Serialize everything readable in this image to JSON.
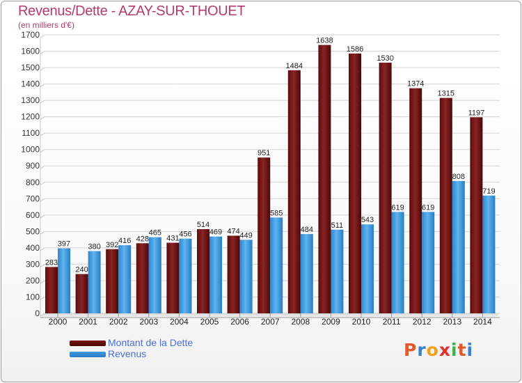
{
  "title": "Revenus/Dette - AZAY-SUR-THOUET",
  "subtitle": "(en milliers d'€)",
  "colors": {
    "dette": "#7a1414",
    "revenus": "#3e9be0",
    "title": "#b23a6e",
    "legend_text": "#4a6fe0"
  },
  "legend": {
    "dette_label": "Montant de la Dette",
    "revenus_label": "Revenus"
  },
  "brand": {
    "letters": [
      "P",
      "r",
      "o",
      "x",
      "i",
      "t",
      "i"
    ],
    "colors": [
      "#e0582b",
      "#3b7fd0",
      "#f0a020",
      "#e03030",
      "#3fae49",
      "#e0582b",
      "#3b7fd0"
    ]
  },
  "chart_data": {
    "type": "bar",
    "title": "Revenus/Dette - AZAY-SUR-THOUET",
    "ylabel": "(en milliers d'€)",
    "xlabel": "",
    "ylim": [
      0,
      1700
    ],
    "ytick_step": 100,
    "grid": true,
    "categories": [
      "2000",
      "2001",
      "2002",
      "2003",
      "2004",
      "2005",
      "2006",
      "2007",
      "2008",
      "2009",
      "2010",
      "2011",
      "2012",
      "2013",
      "2014"
    ],
    "series": [
      {
        "name": "Montant de la Dette",
        "values": [
          283,
          240,
          392,
          428,
          431,
          514,
          474,
          951,
          1484,
          1638,
          1586,
          1530,
          1374,
          1315,
          1197
        ]
      },
      {
        "name": "Revenus",
        "values": [
          397,
          380,
          416,
          465,
          456,
          469,
          449,
          585,
          484,
          511,
          543,
          619,
          619,
          808,
          719
        ]
      }
    ]
  }
}
